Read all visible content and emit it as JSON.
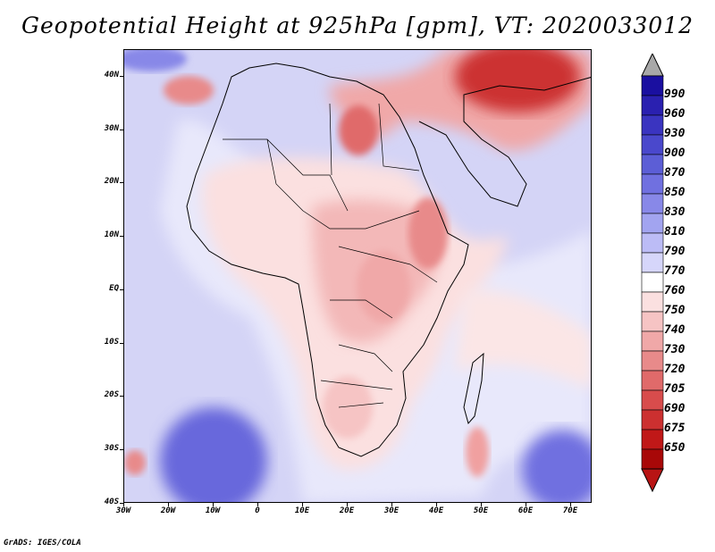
{
  "title": "Geopotential Height at 925hPa [gpm], VT: 2020033012",
  "credit": "GrADS: IGES/COLA",
  "lat_labels": [
    "40N",
    "30N",
    "20N",
    "10N",
    "EQ",
    "10S",
    "20S",
    "30S",
    "40S"
  ],
  "lon_labels": [
    "30W",
    "20W",
    "10W",
    "0",
    "10E",
    "20E",
    "30E",
    "40E",
    "50E",
    "60E",
    "70E"
  ],
  "colorbar": {
    "labels": [
      "990",
      "960",
      "930",
      "900",
      "870",
      "850",
      "830",
      "810",
      "790",
      "770",
      "760",
      "750",
      "740",
      "730",
      "720",
      "705",
      "690",
      "675",
      "650"
    ],
    "colors": [
      "#1a0fa0",
      "#2a20b0",
      "#3a34c0",
      "#4a48cc",
      "#5c5ed6",
      "#7070e0",
      "#8888e8",
      "#a2a4f0",
      "#bcbcf6",
      "#d6d6fa",
      "#ffffff",
      "#fbe0e0",
      "#f6c4c4",
      "#f0a8a8",
      "#e88a8a",
      "#e06a6a",
      "#d84c4c",
      "#cc3030",
      "#c01818",
      "#a80808"
    ],
    "top_color": "#a8a8a8",
    "bottom_color": "#b81414"
  }
}
